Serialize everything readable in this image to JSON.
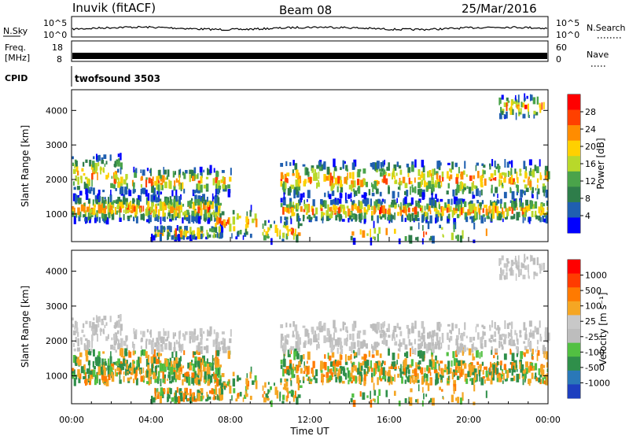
{
  "header": {
    "station": "Inuvik (fitACF)",
    "beam": "Beam 08",
    "date": "25/Mar/2016"
  },
  "colors": {
    "power_scale": [
      "#0000ff",
      "#1f5fb0",
      "#2e7d4a",
      "#4aa34a",
      "#b8d82a",
      "#ffd000",
      "#ff8c00",
      "#ff4000",
      "#ff0000"
    ],
    "velocity_scale": [
      "#1d3fbf",
      "#2a78b8",
      "#2f8f4a",
      "#52c042",
      "#bdbdbd",
      "#c8c8c8",
      "#f5a623",
      "#ff7a00",
      "#ff3c00",
      "#ff0000"
    ]
  },
  "top_panels": {
    "nsky": {
      "label": "N.Sky",
      "right_label": "N.Search",
      "ticks_left": [
        "10^5",
        "10^0"
      ],
      "ticks_right": [
        "10^5",
        "10^0"
      ]
    },
    "freq": {
      "label_line1": "Freq.",
      "label_line2": "[MHz]",
      "ticks_left": [
        "18",
        "8"
      ],
      "ticks_right": [
        "60",
        "0"
      ],
      "right_label": "Nave"
    },
    "cpid": {
      "label": "CPID",
      "value": "twofsound 3503"
    }
  },
  "chart_data": [
    {
      "type": "heatmap",
      "name": "power",
      "ylabel": "Slant Range [km]",
      "ylim": [
        200,
        4600
      ],
      "yticks": [
        "4000",
        "3000",
        "2000",
        "1000"
      ],
      "colorbar_label": "Power [dB]",
      "colorbar_ticks": [
        "28",
        "24",
        "20",
        "16",
        "12",
        "8",
        "4"
      ],
      "colorbar_range": [
        0,
        30
      ]
    },
    {
      "type": "heatmap",
      "name": "velocity",
      "ylabel": "Slant Range [km]",
      "ylim": [
        200,
        4600
      ],
      "yticks": [
        "4000",
        "3000",
        "2000",
        "1000"
      ],
      "colorbar_label": "Velocity [m s⁻¹]",
      "colorbar_ticks": [
        "1000",
        "500",
        "100",
        "25",
        "-25",
        "-100",
        "-500",
        "-1000"
      ],
      "xlabel": "Time UT",
      "xticks": [
        "00:00",
        "04:00",
        "08:00",
        "12:00",
        "16:00",
        "20:00",
        "00:00"
      ],
      "xlim_hours": [
        0,
        24
      ]
    }
  ]
}
